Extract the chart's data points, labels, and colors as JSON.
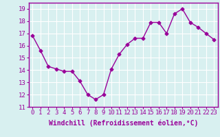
{
  "x": [
    0,
    1,
    2,
    3,
    4,
    5,
    6,
    7,
    8,
    9,
    10,
    11,
    12,
    13,
    14,
    15,
    16,
    17,
    18,
    19,
    20,
    21,
    22,
    23
  ],
  "y": [
    16.8,
    15.6,
    14.3,
    14.1,
    13.9,
    13.9,
    13.1,
    12.0,
    11.6,
    12.0,
    14.1,
    15.3,
    16.1,
    16.6,
    16.6,
    17.9,
    17.9,
    17.0,
    18.6,
    19.0,
    17.9,
    17.5,
    17.0,
    16.5
  ],
  "line_color": "#990099",
  "marker": "D",
  "marker_size": 2.5,
  "bg_color": "#d8f0f0",
  "grid_color": "#b8d8d8",
  "xlabel": "Windchill (Refroidissement éolien,°C)",
  "xlabel_color": "#990099",
  "tick_color": "#990099",
  "ylim": [
    11,
    19.5
  ],
  "yticks": [
    11,
    12,
    13,
    14,
    15,
    16,
    17,
    18,
    19
  ],
  "xticks": [
    0,
    1,
    2,
    3,
    4,
    5,
    6,
    7,
    8,
    9,
    10,
    11,
    12,
    13,
    14,
    15,
    16,
    17,
    18,
    19,
    20,
    21,
    22,
    23
  ],
  "xtick_labels": [
    "0",
    "1",
    "2",
    "3",
    "4",
    "5",
    "6",
    "7",
    "8",
    "9",
    "10",
    "11",
    "12",
    "13",
    "14",
    "15",
    "16",
    "17",
    "18",
    "19",
    "20",
    "21",
    "22",
    "23"
  ],
  "spine_color": "#990099",
  "line_width": 1.0,
  "tick_fontsize": 6.5,
  "xlabel_fontsize": 7.0
}
